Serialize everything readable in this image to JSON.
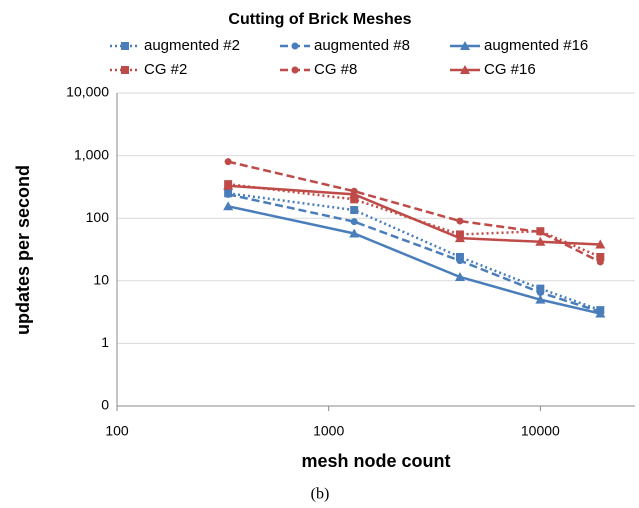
{
  "chart_data": {
    "type": "line",
    "title": "Cutting of Brick Meshes",
    "x_label": "mesh node count",
    "y_label": "updates per second",
    "caption": "(b)",
    "x": [
      335,
      1320,
      4170,
      10000,
      19200
    ],
    "xlim": [
      100,
      28000
    ],
    "xticks": [
      100,
      1000,
      10000
    ],
    "xscale": "log",
    "ylim": [
      0.1,
      10000
    ],
    "yscale": "log",
    "yticks": [
      {
        "value": 0.1,
        "label": "0"
      },
      1,
      10,
      100,
      {
        "value": 1000,
        "label": "1,000"
      },
      {
        "value": 10000,
        "label": "10,000"
      }
    ],
    "grid": true,
    "legend": "top",
    "series": [
      {
        "name": "augmented #2",
        "color": "#4a7ebb",
        "dash": "dotted",
        "marker": "square",
        "values": [
          250,
          135,
          24,
          7.5,
          3.4
        ]
      },
      {
        "name": "augmented #8",
        "color": "#4a7ebb",
        "dash": "dashed",
        "marker": "circle",
        "values": [
          240,
          88,
          21,
          6.5,
          3.2
        ]
      },
      {
        "name": "augmented #16",
        "color": "#4a7ebb",
        "dash": "solid",
        "marker": "triangle",
        "values": [
          155,
          57,
          11.5,
          5,
          3
        ]
      },
      {
        "name": "CG #2",
        "color": "#be4b48",
        "dash": "dotted",
        "marker": "square",
        "values": [
          350,
          200,
          55,
          62,
          24
        ]
      },
      {
        "name": "CG #8",
        "color": "#be4b48",
        "dash": "dashed",
        "marker": "circle",
        "values": [
          800,
          270,
          90,
          60,
          20
        ]
      },
      {
        "name": "CG #16",
        "color": "#be4b48",
        "dash": "solid",
        "marker": "triangle",
        "values": [
          330,
          240,
          48,
          42,
          38
        ]
      }
    ]
  }
}
